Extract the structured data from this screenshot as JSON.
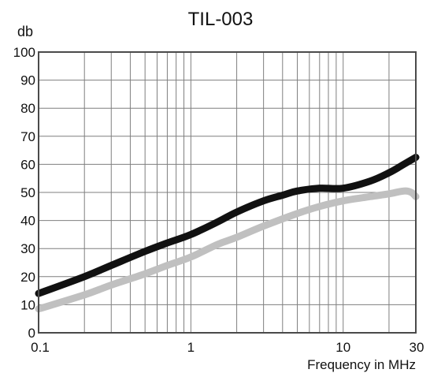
{
  "chart_data": {
    "type": "line",
    "title": "TIL-003",
    "ylabel": "db",
    "xlabel": "Frequency in MHz",
    "x_scale": "log",
    "xlim": [
      0.1,
      30
    ],
    "ylim": [
      0,
      100
    ],
    "grid": true,
    "legend": "none",
    "x_tick_labels": [
      {
        "value": 0.1,
        "label": "0.1"
      },
      {
        "value": 1,
        "label": "1"
      },
      {
        "value": 10,
        "label": "10"
      },
      {
        "value": 30,
        "label": "30"
      }
    ],
    "y_ticks": [
      0,
      10,
      20,
      30,
      40,
      50,
      60,
      70,
      80,
      90,
      100
    ],
    "x_gridlines": [
      0.1,
      0.2,
      0.3,
      0.4,
      0.5,
      0.6,
      0.7,
      0.8,
      0.9,
      1,
      2,
      3,
      4,
      5,
      6,
      7,
      8,
      9,
      10,
      20,
      30
    ],
    "series": [
      {
        "color": "#111111",
        "x": [
          0.1,
          0.2,
          0.3,
          0.5,
          0.7,
          1,
          1.5,
          2,
          3,
          4,
          5,
          7,
          10,
          15,
          20,
          25,
          30
        ],
        "values": [
          14,
          20,
          24,
          29,
          32,
          35,
          39.5,
          43,
          47,
          49,
          50.5,
          51.5,
          51.5,
          54,
          57,
          60,
          62.5
        ]
      },
      {
        "color": "#c0c0c0",
        "x": [
          0.1,
          0.2,
          0.3,
          0.5,
          0.7,
          1,
          1.5,
          2,
          3,
          5,
          7,
          10,
          15,
          20,
          25,
          28,
          30
        ],
        "values": [
          8.5,
          13.5,
          17,
          21,
          24,
          27,
          31.5,
          34,
          38,
          42.5,
          45,
          47,
          48.5,
          49.5,
          50.5,
          50,
          48.5
        ]
      }
    ]
  }
}
